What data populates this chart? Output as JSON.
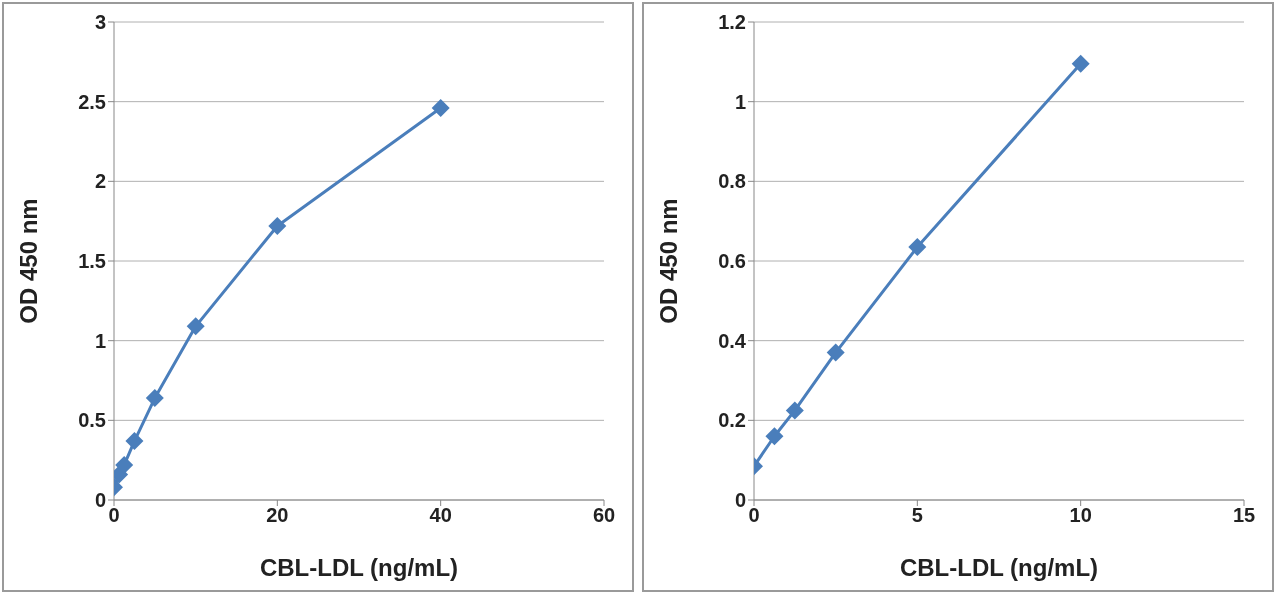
{
  "chart_data": [
    {
      "type": "line",
      "xlabel": "CBL-LDL (ng/mL)",
      "ylabel": "OD 450 nm",
      "x": [
        0,
        0.625,
        1.25,
        2.5,
        5,
        10,
        20,
        40
      ],
      "series": [
        {
          "color": "#4a7ebb",
          "values": [
            0.08,
            0.16,
            0.22,
            0.37,
            0.64,
            1.09,
            1.72,
            2.46
          ]
        }
      ],
      "xlim": [
        0,
        60
      ],
      "xticks": [
        0,
        20,
        40,
        60
      ],
      "ylim": [
        0,
        3
      ],
      "yticks": [
        0,
        0.5,
        1,
        1.5,
        2,
        2.5,
        3
      ],
      "grid": "y",
      "legend": false,
      "marker": "diamond",
      "line_style": "solid"
    },
    {
      "type": "line",
      "xlabel": "CBL-LDL (ng/mL)",
      "ylabel": "OD 450 nm",
      "x": [
        0,
        0.625,
        1.25,
        2.5,
        5,
        10
      ],
      "series": [
        {
          "color": "#4a7ebb",
          "values": [
            0.085,
            0.16,
            0.225,
            0.37,
            0.635,
            1.095
          ]
        }
      ],
      "xlim": [
        0,
        15
      ],
      "xticks": [
        0,
        5,
        10,
        15
      ],
      "ylim": [
        0,
        1.2
      ],
      "yticks": [
        0,
        0.2,
        0.4,
        0.6,
        0.8,
        1,
        1.2
      ],
      "grid": "y",
      "legend": false,
      "marker": "diamond",
      "line_style": "solid"
    }
  ]
}
